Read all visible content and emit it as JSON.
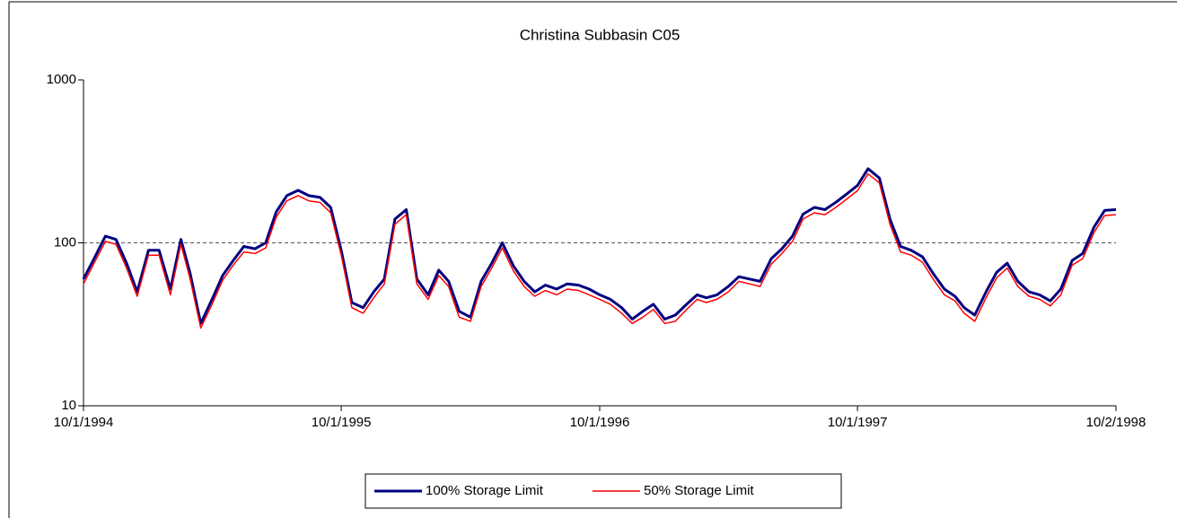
{
  "chart_data": {
    "type": "line",
    "title": "Christina Subbasin C05",
    "x": [
      "10/1/1994",
      "10/16/1994",
      "11/1/1994",
      "11/16/1994",
      "12/1/1994",
      "12/16/1994",
      "1/1/1995",
      "1/16/1995",
      "2/1/1995",
      "2/16/1995",
      "3/1/1995",
      "3/16/1995",
      "4/1/1995",
      "4/16/1995",
      "5/1/1995",
      "5/16/1995",
      "6/1/1995",
      "6/16/1995",
      "7/1/1995",
      "7/16/1995",
      "8/1/1995",
      "8/16/1995",
      "9/1/1995",
      "9/16/1995",
      "10/1/1995",
      "10/16/1995",
      "11/1/1995",
      "11/16/1995",
      "12/1/1995",
      "12/16/1995",
      "1/1/1996",
      "1/16/1996",
      "2/1/1996",
      "2/16/1996",
      "3/1/1996",
      "3/16/1996",
      "4/1/1996",
      "4/16/1996",
      "5/1/1996",
      "5/16/1996",
      "6/1/1996",
      "6/16/1996",
      "7/1/1996",
      "7/16/1996",
      "8/1/1996",
      "8/16/1996",
      "9/1/1996",
      "9/16/1996",
      "10/1/1996",
      "10/16/1996",
      "11/1/1996",
      "11/16/1996",
      "12/1/1996",
      "12/16/1996",
      "1/1/1997",
      "1/16/1997",
      "2/1/1997",
      "2/16/1997",
      "3/1/1997",
      "3/16/1997",
      "4/1/1997",
      "4/16/1997",
      "5/1/1997",
      "5/16/1997",
      "6/1/1997",
      "6/16/1997",
      "7/1/1997",
      "7/16/1997",
      "8/1/1997",
      "8/16/1997",
      "9/1/1997",
      "9/16/1997",
      "10/1/1997",
      "10/16/1997",
      "11/1/1997",
      "11/16/1997",
      "12/1/1997",
      "12/16/1997",
      "1/1/1998",
      "1/16/1998",
      "2/1/1998",
      "2/16/1998",
      "3/1/1998",
      "3/16/1998",
      "4/1/1998",
      "4/16/1998",
      "5/1/1998",
      "5/16/1998",
      "6/1/1998",
      "6/16/1998",
      "7/1/1998",
      "7/16/1998",
      "8/1/1998",
      "8/16/1998",
      "9/1/1998",
      "9/16/1998",
      "10/2/1998"
    ],
    "series": [
      {
        "name": "100% Storage Limit",
        "color": "#000080",
        "values": [
          60,
          80,
          110,
          105,
          75,
          50,
          90,
          90,
          52,
          105,
          65,
          32,
          45,
          63,
          78,
          95,
          92,
          100,
          155,
          195,
          210,
          195,
          190,
          165,
          90,
          43,
          40,
          50,
          60,
          140,
          160,
          60,
          48,
          68,
          58,
          38,
          35,
          58,
          75,
          100,
          72,
          58,
          50,
          55,
          52,
          56,
          55,
          52,
          48,
          45,
          40,
          34,
          38,
          42,
          34,
          36,
          42,
          48,
          46,
          48,
          54,
          62,
          60,
          58,
          80,
          92,
          110,
          150,
          165,
          160,
          178,
          200,
          225,
          285,
          250,
          140,
          95,
          90,
          82,
          65,
          52,
          47,
          40,
          36,
          50,
          66,
          75,
          58,
          50,
          48,
          44,
          52,
          78,
          86,
          125,
          158,
          160
        ]
      },
      {
        "name": "50% Storage Limit",
        "color": "#ff0000",
        "values": [
          56,
          75,
          102,
          98,
          70,
          47,
          84,
          84,
          48,
          98,
          60,
          30,
          42,
          59,
          73,
          88,
          86,
          93,
          144,
          181,
          195,
          181,
          177,
          153,
          84,
          40,
          37,
          46,
          56,
          130,
          149,
          56,
          45,
          63,
          54,
          35,
          33,
          54,
          70,
          93,
          67,
          54,
          47,
          51,
          48,
          52,
          51,
          48,
          45,
          42,
          37,
          32,
          35,
          39,
          32,
          33,
          39,
          45,
          43,
          45,
          50,
          58,
          56,
          54,
          74,
          86,
          102,
          140,
          153,
          149,
          166,
          186,
          209,
          265,
          233,
          130,
          88,
          84,
          76,
          60,
          48,
          44,
          37,
          33,
          46,
          61,
          70,
          54,
          47,
          45,
          41,
          48,
          73,
          80,
          116,
          147,
          149
        ]
      }
    ],
    "xlim": [
      "10/1/1994",
      "10/2/1998"
    ],
    "xticks": [
      "10/1/1994",
      "10/1/1995",
      "10/1/1996",
      "10/1/1997",
      "10/2/1998"
    ],
    "ylim": [
      10,
      1000
    ],
    "yticks": [
      10,
      100,
      1000
    ],
    "log_y": true,
    "grid": true,
    "legend": "bottom"
  }
}
